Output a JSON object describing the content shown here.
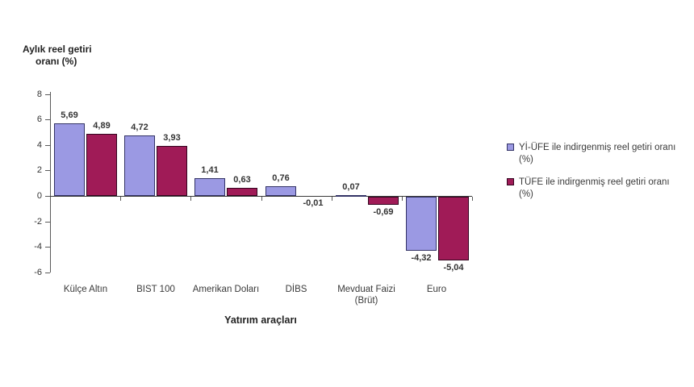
{
  "chart_data": {
    "type": "bar",
    "title": "",
    "xlabel": "Yatırım araçları",
    "ylabel": "Aylık reel getiri oranı (%)",
    "ylabel_lines": [
      "Aylık reel getiri",
      "oranı (%)"
    ],
    "categories": [
      "Külçe Altın",
      "BIST 100",
      "Amerikan Doları",
      "DİBS",
      "Mevduat Faizi (Brüt)",
      "Euro"
    ],
    "series": [
      {
        "name": "Yİ-ÜFE ile indirgenmiş reel getiri oranı (%)",
        "values": [
          5.69,
          4.72,
          1.41,
          0.76,
          0.07,
          -4.32
        ],
        "labels": [
          "5,69",
          "4,72",
          "1,41",
          "0,76",
          "0,07",
          "-4,32"
        ],
        "color": "#9b99e3",
        "border_color": "#333366"
      },
      {
        "name": "TÜFE ile indirgenmiş reel getiri oranı (%)",
        "values": [
          4.89,
          3.93,
          0.63,
          -0.01,
          -0.69,
          -5.04
        ],
        "labels": [
          "4,89",
          "3,93",
          "0,63",
          "-0,01",
          "-0,69",
          "-5,04"
        ],
        "color": "#a01b57",
        "border_color": "#33041f"
      }
    ],
    "yticks": [
      8,
      6,
      4,
      2,
      0,
      -2,
      -4,
      -6
    ],
    "ytick_labels": [
      "8",
      "6",
      "4",
      "2",
      "0",
      "-2",
      "-4",
      "-6"
    ],
    "ylim": [
      -6,
      8
    ],
    "grid": false,
    "legend_position": "right",
    "background_color": "#ffffff",
    "axis_color": "#5a5a5a"
  }
}
